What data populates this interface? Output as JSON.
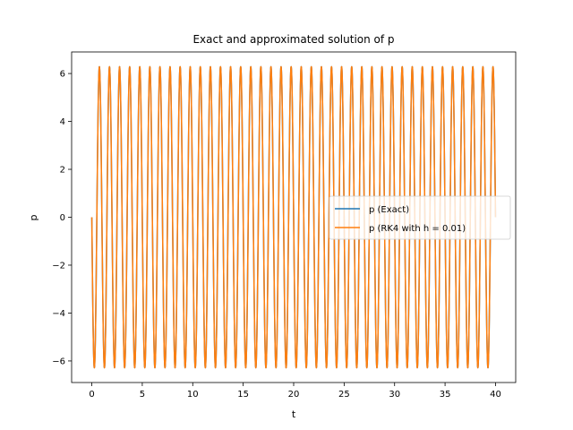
{
  "chart_data": {
    "type": "line",
    "title": "Exact and approximated solution of p",
    "xlabel": "t",
    "ylabel": "p",
    "xlim": [
      -2.0,
      42.0
    ],
    "ylim": [
      -6.9,
      6.9
    ],
    "xticks": [
      0,
      5,
      10,
      15,
      20,
      25,
      30,
      35,
      40
    ],
    "xtick_labels": [
      "0",
      "5",
      "10",
      "15",
      "20",
      "25",
      "30",
      "35",
      "40"
    ],
    "yticks": [
      -6,
      -4,
      -2,
      0,
      2,
      4,
      6
    ],
    "ytick_labels": [
      "−6",
      "−4",
      "−2",
      "0",
      "2",
      "4",
      "6"
    ],
    "grid": false,
    "legend_position": "center-right",
    "t_range": [
      0,
      40
    ],
    "series": [
      {
        "name": "p (Exact)",
        "color": "#1f77b4",
        "function": "-2*pi*sin(2*pi*t)"
      },
      {
        "name": "p (RK4 with h = 0.01)",
        "color": "#ff7f0e",
        "function": "-2*pi*sin(2*pi*t)"
      }
    ]
  }
}
